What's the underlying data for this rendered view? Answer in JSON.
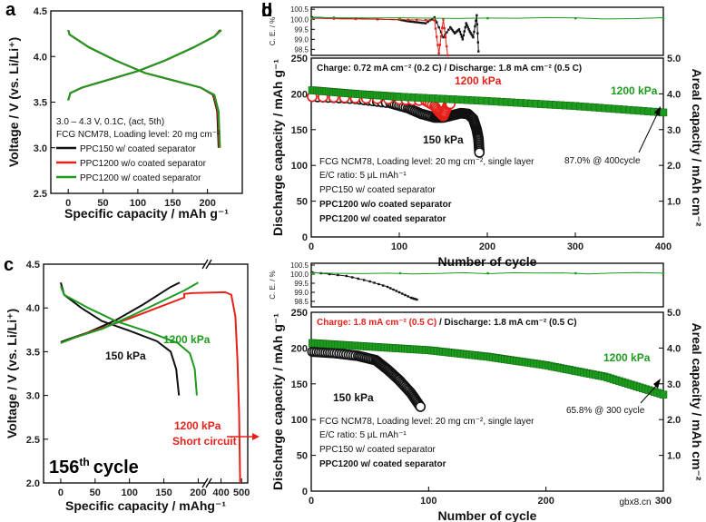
{
  "colors": {
    "black": "#111111",
    "red": "#e8201a",
    "green": "#1e9a1e"
  },
  "chart_data": [
    {
      "id": "a",
      "type": "line",
      "panel_label": "a",
      "xlabel": "Specific capacity / mAh g⁻¹",
      "ylabel": "Voltage / V (vs. Li/Li⁺)",
      "xlim": [
        -25,
        250
      ],
      "ylim": [
        2.5,
        4.5
      ],
      "xticks": [
        "0",
        "50",
        "100",
        "150",
        "200"
      ],
      "yticks": [
        "2.5",
        "3.0",
        "3.5",
        "4.0",
        "4.5"
      ],
      "conditions": [
        "3.0 – 4.3 V, 0.1C, (act, 5th)",
        "FCG NCM78, Loading level: 20 mg cm⁻²"
      ],
      "series": [
        {
          "name": "PPC150 w/ coated separator",
          "color": "#111111",
          "charge": [
            [
              0,
              3.52
            ],
            [
              3,
              3.6
            ],
            [
              20,
              3.66
            ],
            [
              60,
              3.75
            ],
            [
              100,
              3.84
            ],
            [
              140,
              3.96
            ],
            [
              180,
              4.1
            ],
            [
              210,
              4.22
            ],
            [
              218,
              4.29
            ]
          ],
          "discharge": [
            [
              0,
              4.29
            ],
            [
              2,
              4.24
            ],
            [
              30,
              4.1
            ],
            [
              70,
              3.95
            ],
            [
              110,
              3.82
            ],
            [
              150,
              3.74
            ],
            [
              190,
              3.66
            ],
            [
              208,
              3.58
            ],
            [
              214,
              3.4
            ],
            [
              216,
              3.0
            ]
          ]
        },
        {
          "name": "PPC1200 w/o coated separator",
          "color": "#e8201a",
          "charge": [
            [
              0,
              3.52
            ],
            [
              3,
              3.6
            ],
            [
              20,
              3.66
            ],
            [
              60,
              3.75
            ],
            [
              100,
              3.84
            ],
            [
              140,
              3.96
            ],
            [
              180,
              4.1
            ],
            [
              210,
              4.22
            ],
            [
              219,
              4.29
            ]
          ],
          "discharge": [
            [
              0,
              4.29
            ],
            [
              2,
              4.24
            ],
            [
              30,
              4.1
            ],
            [
              70,
              3.95
            ],
            [
              110,
              3.82
            ],
            [
              150,
              3.74
            ],
            [
              190,
              3.66
            ],
            [
              209,
              3.58
            ],
            [
              215,
              3.4
            ],
            [
              217,
              3.0
            ]
          ]
        },
        {
          "name": "PPC1200 w/ coated separator",
          "color": "#1e9a1e",
          "charge": [
            [
              0,
              3.52
            ],
            [
              3,
              3.6
            ],
            [
              20,
              3.66
            ],
            [
              60,
              3.75
            ],
            [
              100,
              3.84
            ],
            [
              140,
              3.96
            ],
            [
              180,
              4.1
            ],
            [
              210,
              4.22
            ],
            [
              220,
              4.29
            ]
          ],
          "discharge": [
            [
              0,
              4.29
            ],
            [
              2,
              4.24
            ],
            [
              30,
              4.1
            ],
            [
              70,
              3.95
            ],
            [
              110,
              3.82
            ],
            [
              150,
              3.74
            ],
            [
              190,
              3.66
            ],
            [
              210,
              3.58
            ],
            [
              216,
              3.4
            ],
            [
              218,
              3.0
            ]
          ]
        }
      ]
    },
    {
      "id": "b",
      "type": "scatter",
      "panel_label": "b",
      "xlabel": "Number of cycle",
      "ylabel": "Discharge capacity / mAh g⁻¹",
      "y2label": "Areal capacity / mAh cm⁻²",
      "xlim": [
        0,
        400
      ],
      "ylim": [
        0,
        250
      ],
      "y2lim": [
        0,
        5
      ],
      "xticks": [
        "0",
        "100",
        "200",
        "300",
        "400"
      ],
      "yticks": [
        "0",
        "50",
        "100",
        "150",
        "200",
        "250"
      ],
      "y2ticks": [
        "1.0",
        "2.0",
        "3.0",
        "4.0",
        "5.0"
      ],
      "ce_label": "C. E. / %",
      "ce_ylim": [
        98.2,
        100.6
      ],
      "ce_ticks": [
        "98.5",
        "99.0",
        "99.5",
        "100.0",
        "100.5"
      ],
      "conditions_line": "Charge: 0.72 mA cm⁻² (0.2 C) / Discharge: 1.8 mA cm⁻² (0.5 C)",
      "info": [
        "FCG NCM78, Loading level: 20 mg cm⁻², single layer",
        "E/C ratio: 5 μL mAh⁻¹"
      ],
      "legend": [
        "PPC150 w/ coated separator",
        "PPC1200 w/o coated separator",
        "PPC1200 w/ coated separator"
      ],
      "labels": {
        "l150": "150 kPa",
        "l1200r": "1200 kPa",
        "l1200g": "1200 kPa",
        "ret": "87.0% @ 400cycle"
      },
      "series": [
        {
          "name": "PPC150 w/ coated separator",
          "color": "#111111",
          "capacity": [
            [
              1,
              196
            ],
            [
              50,
              193
            ],
            [
              90,
              187
            ],
            [
              110,
              180
            ],
            [
              125,
              172
            ],
            [
              140,
              167
            ],
            [
              150,
              167
            ],
            [
              160,
              170
            ],
            [
              170,
              173
            ],
            [
              178,
              172
            ],
            [
              184,
              165
            ],
            [
              188,
              150
            ],
            [
              190,
              137
            ],
            [
              191,
              118
            ]
          ],
          "ce": [
            [
              1,
              100.1
            ],
            [
              100,
              99.98
            ],
            [
              110,
              99.9
            ],
            [
              120,
              99.85
            ],
            [
              130,
              99.8
            ],
            [
              140,
              100.1
            ],
            [
              150,
              99.1
            ],
            [
              158,
              99.6
            ],
            [
              163,
              99.3
            ],
            [
              168,
              99.5
            ],
            [
              172,
              99.0
            ],
            [
              176,
              99.8
            ],
            [
              180,
              99.4
            ],
            [
              184,
              99.1
            ],
            [
              188,
              100.2
            ],
            [
              190,
              98.4
            ]
          ]
        },
        {
          "name": "PPC1200 w/o coated separator",
          "color": "#e8201a",
          "capacity": [
            [
              1,
              196
            ],
            [
              50,
              194
            ],
            [
              100,
              192
            ],
            [
              130,
              190
            ],
            [
              140,
              183
            ],
            [
              145,
              175
            ],
            [
              150,
              169
            ],
            [
              152,
              175
            ],
            [
              155,
              184
            ],
            [
              158,
              186
            ]
          ],
          "ce": [
            [
              1,
              100.05
            ],
            [
              100,
              99.98
            ],
            [
              140,
              99.95
            ],
            [
              145,
              98.3
            ],
            [
              150,
              100.0
            ],
            [
              155,
              98.2
            ]
          ]
        },
        {
          "name": "PPC1200 w/ coated separator",
          "color": "#1e9a1e",
          "capacity": [
            [
              1,
              205
            ],
            [
              50,
              200
            ],
            [
              100,
              196
            ],
            [
              200,
              190
            ],
            [
              300,
              183
            ],
            [
              400,
              174
            ]
          ],
          "ce": [
            [
              1,
              100.05
            ],
            [
              400,
              100.05
            ]
          ]
        }
      ]
    },
    {
      "id": "c",
      "type": "line",
      "panel_label": "c",
      "xlabel": "Specific capacity / mAhg⁻¹",
      "ylabel": "Voltage / V (vs. Li/Li⁺)",
      "xlim": [
        -25,
        530
      ],
      "ylim": [
        2.0,
        4.5
      ],
      "xticks": [
        "0",
        "50",
        "100",
        "150",
        "200",
        "400",
        "500"
      ],
      "yticks": [
        "2.0",
        "2.5",
        "3.0",
        "3.5",
        "4.0",
        "4.5"
      ],
      "cycle_label": "156",
      "cycle_suffix": "th",
      "cycle_word": "cycle",
      "labels": {
        "l150": "150 kPa",
        "l1200": "1200 kPa",
        "short1": "1200 kPa",
        "short2": "Short circuit"
      },
      "series": [
        {
          "name": "PPC150 w/ coated separator",
          "color": "#111111",
          "charge": [
            [
              0,
              3.61
            ],
            [
              10,
              3.64
            ],
            [
              40,
              3.72
            ],
            [
              80,
              3.86
            ],
            [
              120,
              4.04
            ],
            [
              160,
              4.24
            ],
            [
              173,
              4.29
            ]
          ],
          "discharge": [
            [
              0,
              4.29
            ],
            [
              5,
              4.15
            ],
            [
              30,
              4.0
            ],
            [
              60,
              3.85
            ],
            [
              100,
              3.74
            ],
            [
              140,
              3.62
            ],
            [
              160,
              3.5
            ],
            [
              168,
              3.3
            ],
            [
              172,
              3.0
            ]
          ]
        },
        {
          "name": "PPC1200 w/o coated separator",
          "color": "#e8201a",
          "charge": [
            [
              0,
              3.6
            ],
            [
              20,
              3.66
            ],
            [
              60,
              3.77
            ],
            [
              100,
              3.88
            ],
            [
              140,
              4.0
            ],
            [
              180,
              4.12
            ],
            [
              220,
              4.16
            ],
            [
              260,
              4.17
            ],
            [
              420,
              4.18
            ],
            [
              450,
              4.15
            ],
            [
              470,
              3.9
            ],
            [
              480,
              3.4
            ],
            [
              488,
              2.8
            ],
            [
              493,
              2.0
            ]
          ],
          "discharge": []
        },
        {
          "name": "PPC1200 w/ coated separator",
          "color": "#1e9a1e",
          "charge": [
            [
              0,
              3.6
            ],
            [
              20,
              3.66
            ],
            [
              60,
              3.76
            ],
            [
              100,
              3.9
            ],
            [
              140,
              4.05
            ],
            [
              180,
              4.2
            ],
            [
              200,
              4.29
            ]
          ],
          "discharge": [
            [
              0,
              4.25
            ],
            [
              5,
              4.15
            ],
            [
              40,
              4.0
            ],
            [
              80,
              3.85
            ],
            [
              130,
              3.72
            ],
            [
              170,
              3.6
            ],
            [
              188,
              3.48
            ],
            [
              195,
              3.3
            ],
            [
              198,
              3.0
            ]
          ]
        }
      ]
    },
    {
      "id": "d",
      "type": "scatter",
      "panel_label": "d",
      "xlabel": "Number of cycle",
      "ylabel": "Discharge capacity / mAh g⁻¹",
      "y2label": "Areal capacity / mAh cm⁻²",
      "xlim": [
        0,
        300
      ],
      "ylim": [
        0,
        250
      ],
      "y2lim": [
        0,
        5
      ],
      "xticks": [
        "0",
        "100",
        "200",
        "300"
      ],
      "yticks": [
        "0",
        "50",
        "100",
        "150",
        "200",
        "250"
      ],
      "y2ticks": [
        "1.0",
        "2.0",
        "3.0",
        "4.0",
        "5.0"
      ],
      "ce_label": "C. E. / %",
      "ce_ylim": [
        98.2,
        100.6
      ],
      "ce_ticks": [
        "98.5",
        "99.0",
        "99.5",
        "100.0",
        "100.5"
      ],
      "conditions_charge": "Charge: 1.8 mA cm⁻² (0.5 C)",
      "conditions_discharge": " / Discharge: 1.8 mA cm⁻² (0.5 C)",
      "info": [
        "FCG NCM78, Loading level: 20 mg cm⁻², single layer",
        "E/C ratio: 5 μL mAh⁻¹"
      ],
      "legend": [
        "PPC150 w/ coated separator",
        "PPC1200 w/ coated separator"
      ],
      "labels": {
        "l150": "150 kPa",
        "l1200": "1200 kPa",
        "ret": "65.8% @ 300 cycle"
      },
      "series": [
        {
          "name": "PPC150 w/ coated separator",
          "color": "#111111",
          "capacity": [
            [
              1,
              195
            ],
            [
              20,
              193
            ],
            [
              40,
              189
            ],
            [
              55,
              183
            ],
            [
              65,
              170
            ],
            [
              75,
              155
            ],
            [
              85,
              137
            ],
            [
              93,
              118
            ]
          ],
          "ce": [
            [
              1,
              100.1
            ],
            [
              30,
              99.9
            ],
            [
              50,
              99.6
            ],
            [
              65,
              99.3
            ],
            [
              75,
              99.0
            ],
            [
              85,
              98.7
            ],
            [
              90,
              98.6
            ]
          ]
        },
        {
          "name": "PPC1200 w/ coated separator",
          "color": "#1e9a1e",
          "capacity": [
            [
              1,
              207
            ],
            [
              50,
              202
            ],
            [
              100,
              197
            ],
            [
              150,
              188
            ],
            [
              200,
              176
            ],
            [
              250,
              160
            ],
            [
              300,
              135
            ]
          ],
          "ce": [
            [
              1,
              100.05
            ],
            [
              300,
              100.05
            ]
          ]
        }
      ]
    }
  ],
  "watermark": "gbx8.cn"
}
